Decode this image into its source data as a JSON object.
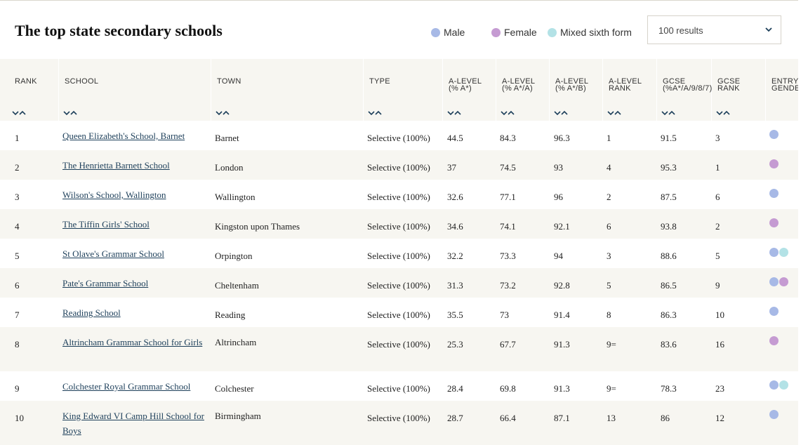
{
  "title": "The top state secondary schools",
  "legend": [
    {
      "label": "Male",
      "color": "#a7b9e6"
    },
    {
      "label": "Female",
      "color": "#c59bd2"
    },
    {
      "label": "Mixed sixth form",
      "color": "#b3e2e6"
    }
  ],
  "results_select": {
    "value": "100 results"
  },
  "columns": [
    {
      "label": "RANK"
    },
    {
      "label": "SCHOOL"
    },
    {
      "label": "TOWN"
    },
    {
      "label": "TYPE"
    },
    {
      "label": "A-LEVEL (% A*)"
    },
    {
      "label": "A-LEVEL (% A*/A)"
    },
    {
      "label": "A-LEVEL (% A*/B)"
    },
    {
      "label": "A-LEVEL RANK"
    },
    {
      "label": "GCSE (%A*/A/9/8/7)"
    },
    {
      "label": "GCSE RANK"
    },
    {
      "label": "ENTRY GENDER"
    }
  ],
  "rows": [
    {
      "rank": "1",
      "school": "Queen Elizabeth's School, Barnet",
      "town": "Barnet",
      "type": "Selective (100%)",
      "al_astar": "44.5",
      "al_a": "84.3",
      "al_b": "96.3",
      "al_rank": "1",
      "gcse": "91.5",
      "gcse_rank": "3",
      "gender": [
        "male"
      ]
    },
    {
      "rank": "2",
      "school": "The Henrietta Barnett School",
      "town": "London",
      "type": "Selective (100%)",
      "al_astar": "37",
      "al_a": "74.5",
      "al_b": "93",
      "al_rank": "4",
      "gcse": "95.3",
      "gcse_rank": "1",
      "gender": [
        "female"
      ]
    },
    {
      "rank": "3",
      "school": "Wilson's School, Wallington",
      "town": "Wallington",
      "type": "Selective (100%)",
      "al_astar": "32.6",
      "al_a": "77.1",
      "al_b": "96",
      "al_rank": "2",
      "gcse": "87.5",
      "gcse_rank": "6",
      "gender": [
        "male"
      ]
    },
    {
      "rank": "4",
      "school": "The Tiffin Girls' School",
      "town": "Kingston upon Thames",
      "type": "Selective (100%)",
      "al_astar": "34.6",
      "al_a": "74.1",
      "al_b": "92.1",
      "al_rank": "6",
      "gcse": "93.8",
      "gcse_rank": "2",
      "gender": [
        "female"
      ]
    },
    {
      "rank": "5",
      "school": "St Olave's Grammar School",
      "town": "Orpington",
      "type": "Selective (100%)",
      "al_astar": "32.2",
      "al_a": "73.3",
      "al_b": "94",
      "al_rank": "3",
      "gcse": "88.6",
      "gcse_rank": "5",
      "gender": [
        "male",
        "mixed"
      ]
    },
    {
      "rank": "6",
      "school": "Pate's Grammar School",
      "town": "Cheltenham",
      "type": "Selective (100%)",
      "al_astar": "31.3",
      "al_a": "73.2",
      "al_b": "92.8",
      "al_rank": "5",
      "gcse": "86.5",
      "gcse_rank": "9",
      "gender": [
        "male",
        "female"
      ]
    },
    {
      "rank": "7",
      "school": "Reading School",
      "town": "Reading",
      "type": "Selective (100%)",
      "al_astar": "35.5",
      "al_a": "73",
      "al_b": "91.4",
      "al_rank": "8",
      "gcse": "86.3",
      "gcse_rank": "10",
      "gender": [
        "male"
      ]
    },
    {
      "rank": "8",
      "school": "Altrincham Grammar School for Girls",
      "town": "Altrincham",
      "type": "Selective (100%)",
      "al_astar": "25.3",
      "al_a": "67.7",
      "al_b": "91.3",
      "al_rank": "9=",
      "gcse": "83.6",
      "gcse_rank": "16",
      "gender": [
        "female"
      ]
    },
    {
      "rank": "9",
      "school": "Colchester Royal Grammar School",
      "town": "Colchester",
      "type": "Selective (100%)",
      "al_astar": "28.4",
      "al_a": "69.8",
      "al_b": "91.3",
      "al_rank": "9=",
      "gcse": "78.3",
      "gcse_rank": "23",
      "gender": [
        "male",
        "mixed"
      ]
    },
    {
      "rank": "10",
      "school": "King Edward VI Camp Hill School for Boys",
      "town": "Birmingham",
      "type": "Selective (100%)",
      "al_astar": "28.7",
      "al_a": "66.4",
      "al_b": "87.1",
      "al_rank": "13",
      "gcse": "86",
      "gcse_rank": "12",
      "gender": [
        "male"
      ]
    }
  ]
}
